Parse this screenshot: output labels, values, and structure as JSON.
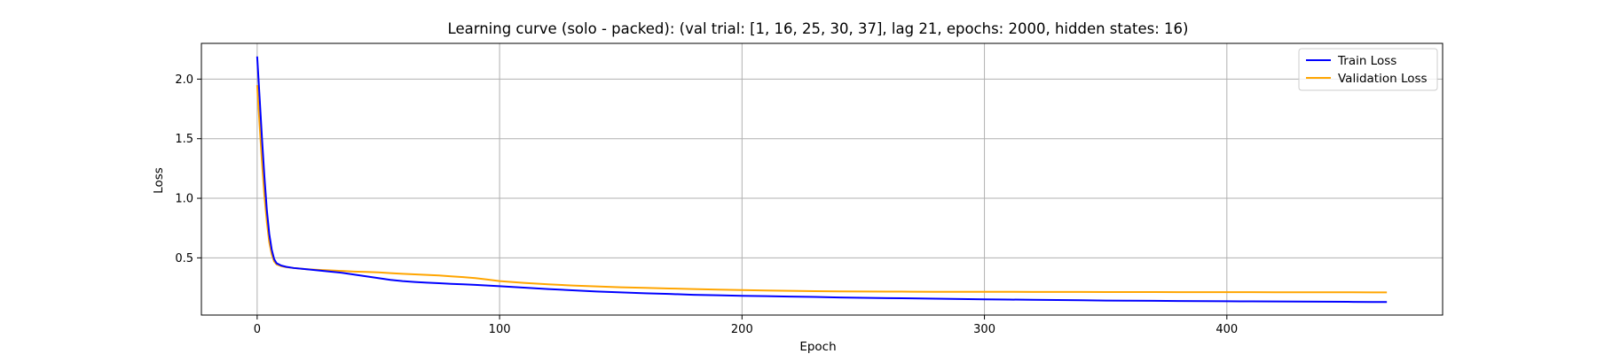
{
  "chart_data": {
    "type": "line",
    "title": "Learning curve (solo - packed): (val trial: [1, 16, 25, 30, 37], lag 21, epochs: 2000, hidden states: 16)",
    "xlabel": "Epoch",
    "ylabel": "Loss",
    "xlim": [
      -23,
      489
    ],
    "ylim": [
      0.02,
      2.3
    ],
    "xticks": [
      0,
      100,
      200,
      300,
      400
    ],
    "yticks": [
      0.5,
      1.0,
      1.5,
      2.0
    ],
    "xtick_labels": [
      "0",
      "100",
      "200",
      "300",
      "400"
    ],
    "ytick_labels": [
      "0.5",
      "1.0",
      "1.5",
      "2.0"
    ],
    "grid": true,
    "legend_position": "top-right",
    "series": [
      {
        "name": "Train Loss",
        "color": "#0000ff",
        "x": [
          0,
          1,
          2,
          3,
          4,
          5,
          6,
          7,
          8,
          10,
          12,
          15,
          20,
          25,
          30,
          35,
          40,
          45,
          50,
          55,
          60,
          65,
          70,
          75,
          80,
          85,
          90,
          95,
          100,
          110,
          120,
          130,
          140,
          150,
          160,
          170,
          180,
          190,
          200,
          210,
          220,
          230,
          240,
          250,
          260,
          270,
          280,
          290,
          300,
          310,
          320,
          330,
          340,
          350,
          360,
          370,
          380,
          390,
          400,
          410,
          420,
          430,
          440,
          450,
          460,
          466
        ],
        "y": [
          2.19,
          1.85,
          1.5,
          1.18,
          0.9,
          0.7,
          0.57,
          0.49,
          0.455,
          0.435,
          0.425,
          0.415,
          0.405,
          0.395,
          0.385,
          0.375,
          0.36,
          0.345,
          0.33,
          0.315,
          0.305,
          0.298,
          0.292,
          0.287,
          0.282,
          0.278,
          0.273,
          0.268,
          0.262,
          0.25,
          0.238,
          0.228,
          0.218,
          0.21,
          0.203,
          0.197,
          0.19,
          0.186,
          0.182,
          0.179,
          0.175,
          0.172,
          0.168,
          0.165,
          0.162,
          0.16,
          0.157,
          0.155,
          0.152,
          0.15,
          0.148,
          0.146,
          0.144,
          0.142,
          0.141,
          0.14,
          0.138,
          0.137,
          0.136,
          0.135,
          0.134,
          0.133,
          0.132,
          0.131,
          0.13,
          0.13
        ]
      },
      {
        "name": "Validation Loss",
        "color": "#ffa500",
        "x": [
          0,
          1,
          2,
          3,
          4,
          5,
          6,
          7,
          8,
          10,
          12,
          15,
          20,
          25,
          30,
          35,
          40,
          45,
          50,
          55,
          60,
          65,
          70,
          75,
          80,
          85,
          90,
          95,
          100,
          110,
          120,
          130,
          140,
          150,
          160,
          170,
          180,
          190,
          200,
          210,
          220,
          230,
          240,
          250,
          260,
          270,
          280,
          290,
          300,
          310,
          320,
          330,
          340,
          350,
          360,
          370,
          380,
          390,
          400,
          410,
          420,
          430,
          440,
          450,
          460,
          466
        ],
        "y": [
          1.95,
          1.62,
          1.3,
          1.02,
          0.8,
          0.63,
          0.53,
          0.47,
          0.445,
          0.43,
          0.422,
          0.415,
          0.405,
          0.4,
          0.395,
          0.39,
          0.385,
          0.382,
          0.378,
          0.372,
          0.366,
          0.362,
          0.357,
          0.352,
          0.345,
          0.338,
          0.33,
          0.318,
          0.305,
          0.29,
          0.278,
          0.268,
          0.26,
          0.253,
          0.248,
          0.243,
          0.238,
          0.234,
          0.23,
          0.226,
          0.223,
          0.221,
          0.219,
          0.218,
          0.217,
          0.216,
          0.215,
          0.215,
          0.215,
          0.215,
          0.214,
          0.214,
          0.214,
          0.213,
          0.213,
          0.213,
          0.212,
          0.212,
          0.212,
          0.212,
          0.211,
          0.211,
          0.211,
          0.211,
          0.21,
          0.21
        ]
      }
    ]
  }
}
